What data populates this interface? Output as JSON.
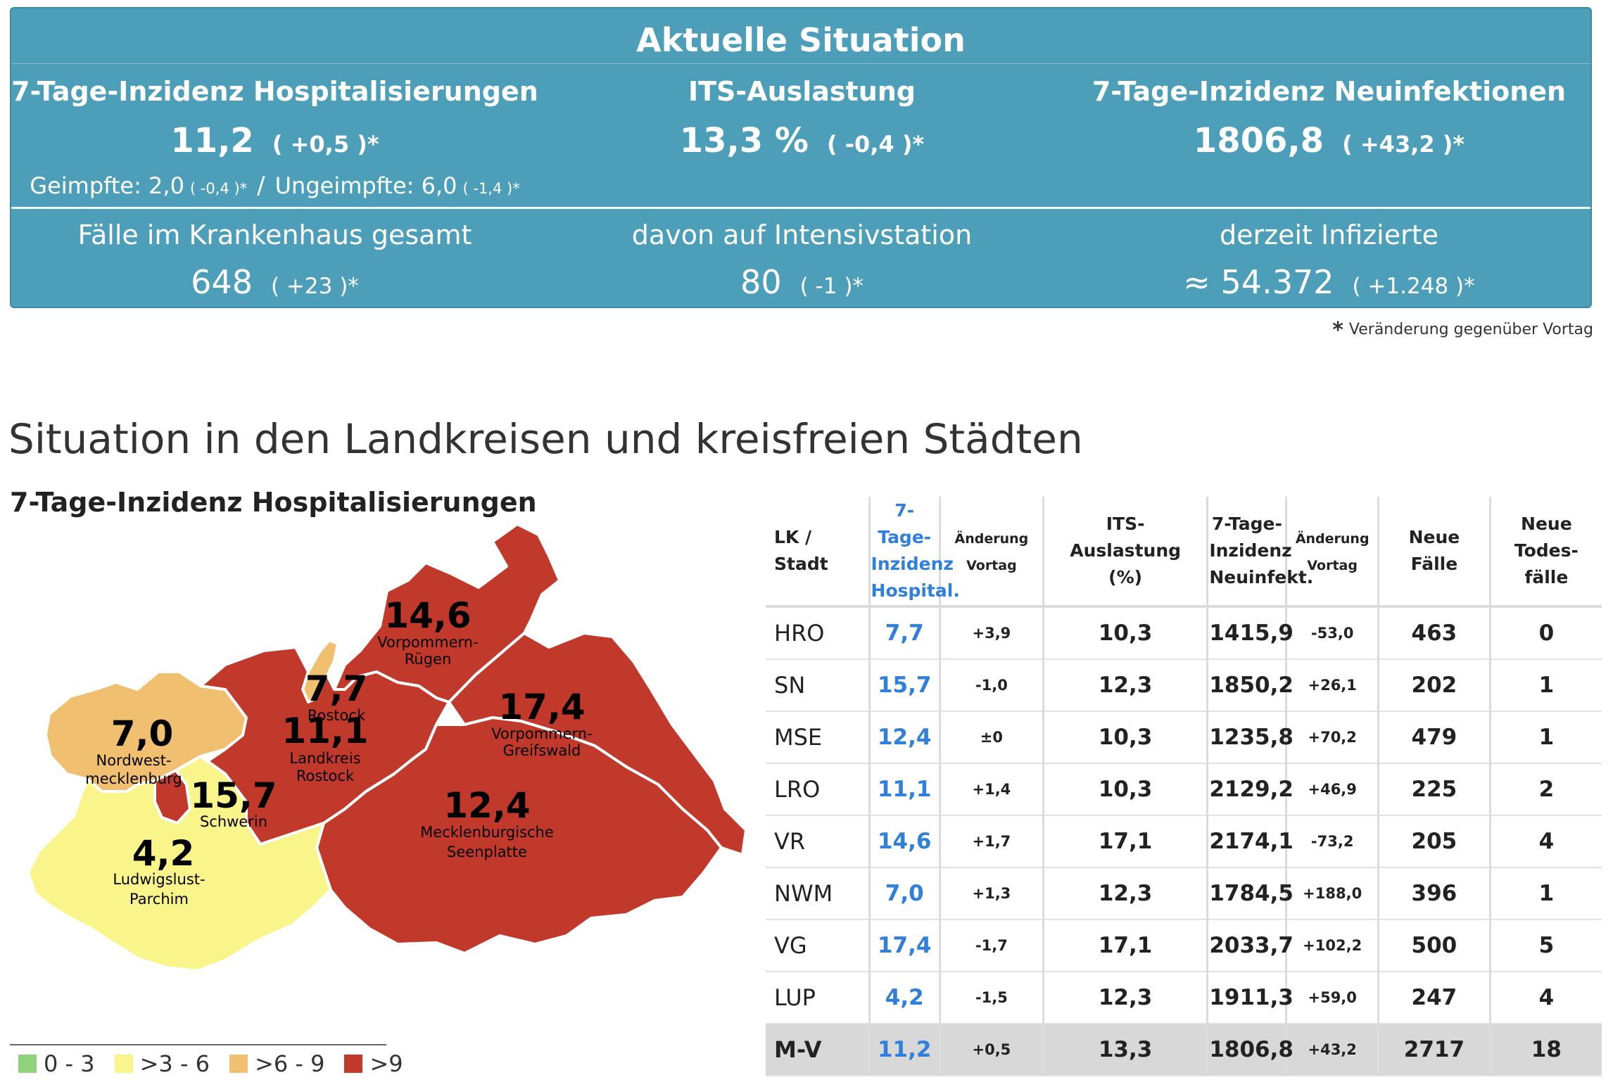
{
  "situation": {
    "title": "Aktuelle Situation",
    "hosp": {
      "label": "7-Tage-Inzidenz Hospitalisierungen",
      "value": "11,2",
      "change": "( +0,5 )*"
    },
    "its": {
      "label": "ITS-Auslastung",
      "value": "13,3 %",
      "change": "( -0,4 )*"
    },
    "neu": {
      "label": "7-Tage-Inzidenz Neuinfektionen",
      "value": "1806,8",
      "change": "( +43,2 )*"
    },
    "geimpfte": {
      "label": "Geimpfte: 2,0",
      "change": "( -0,4 )*"
    },
    "ungeimpfte": {
      "label": "Ungeimpfte: 6,0",
      "change": "( -1,4 )*"
    },
    "slash": "/",
    "kh": {
      "label": "Fälle im Krankenhaus gesamt",
      "value": "648",
      "change": "( +23 )*"
    },
    "intensiv": {
      "label": "davon auf Intensivstation",
      "value": "80",
      "change": "( -1 )*"
    },
    "infizierte": {
      "label": "derzeit Infizierte",
      "value": "≈ 54.372",
      "change": "( +1.248 )*"
    },
    "footnote_star": "*",
    "footnote": "Veränderung gegenüber Vortag"
  },
  "section_title": "Situation in den Landkreisen und kreisfreien Städten",
  "map": {
    "title": "7-Tage-Inzidenz Hospitalisierungen",
    "regions": {
      "vr": {
        "value": "14,6",
        "name1": "Vorpommern-",
        "name2": "Rügen",
        "color": "#c0392b"
      },
      "hro": {
        "value": "7,7",
        "name1": "Rostock",
        "color": "#f0c070"
      },
      "vg": {
        "value": "17,4",
        "name1": "Vorpommern-",
        "name2": "Greifswald",
        "color": "#c0392b"
      },
      "nwm": {
        "value": "7,0",
        "name1": "Nordwest-",
        "name2": "mecklenburg",
        "color": "#f0c070"
      },
      "lro": {
        "value": "11,1",
        "name1": "Landkreis",
        "name2": "Rostock",
        "color": "#c0392b"
      },
      "sn": {
        "value": "15,7",
        "name1": "Schwerin",
        "color": "#c0392b"
      },
      "mse": {
        "value": "12,4",
        "name1": "Mecklenburgische",
        "name2": "Seenplatte",
        "color": "#c0392b"
      },
      "lup": {
        "value": "4,2",
        "name1": "Ludwigslust-",
        "name2": "Parchim",
        "color": "#faf58a"
      }
    },
    "legend": [
      {
        "label": "0 - 3",
        "color": "#8fd27a"
      },
      {
        "label": ">3 - 6",
        "color": "#faf58a"
      },
      {
        "label": ">6 - 9",
        "color": "#f0c070"
      },
      {
        "label": ">9",
        "color": "#c0392b"
      }
    ]
  },
  "table": {
    "headers": {
      "lk": [
        "LK /",
        "Stadt"
      ],
      "hosp": [
        "7-Tage-",
        "Inzidenz",
        "Hospital."
      ],
      "aend1": [
        "Änderung",
        "Vortag"
      ],
      "its": [
        "ITS-",
        "Auslastung",
        "(%)"
      ],
      "neu": [
        "7-Tage-",
        "Inzidenz",
        "Neuinfekt."
      ],
      "aend2": [
        "Änderung",
        "Vortag"
      ],
      "faelle": [
        "Neue",
        "Fälle"
      ],
      "tod": [
        "Neue",
        "Todes-",
        "fälle"
      ]
    },
    "rows": [
      [
        "HRO",
        "7,7",
        "+3,9",
        "10,3",
        "1415,9",
        "-53,0",
        "463",
        "0"
      ],
      [
        "SN",
        "15,7",
        "-1,0",
        "12,3",
        "1850,2",
        "+26,1",
        "202",
        "1"
      ],
      [
        "MSE",
        "12,4",
        "±0",
        "10,3",
        "1235,8",
        "+70,2",
        "479",
        "1"
      ],
      [
        "LRO",
        "11,1",
        "+1,4",
        "10,3",
        "2129,2",
        "+46,9",
        "225",
        "2"
      ],
      [
        "VR",
        "14,6",
        "+1,7",
        "17,1",
        "2174,1",
        "-73,2",
        "205",
        "4"
      ],
      [
        "NWM",
        "7,0",
        "+1,3",
        "12,3",
        "1784,5",
        "+188,0",
        "396",
        "1"
      ],
      [
        "VG",
        "17,4",
        "-1,7",
        "17,1",
        "2033,7",
        "+102,2",
        "500",
        "5"
      ],
      [
        "LUP",
        "4,2",
        "-1,5",
        "12,3",
        "1911,3",
        "+59,0",
        "247",
        "4"
      ]
    ],
    "total": [
      "M-V",
      "11,2",
      "+0,5",
      "13,3",
      "1806,8",
      "+43,2",
      "2717",
      "18"
    ]
  }
}
